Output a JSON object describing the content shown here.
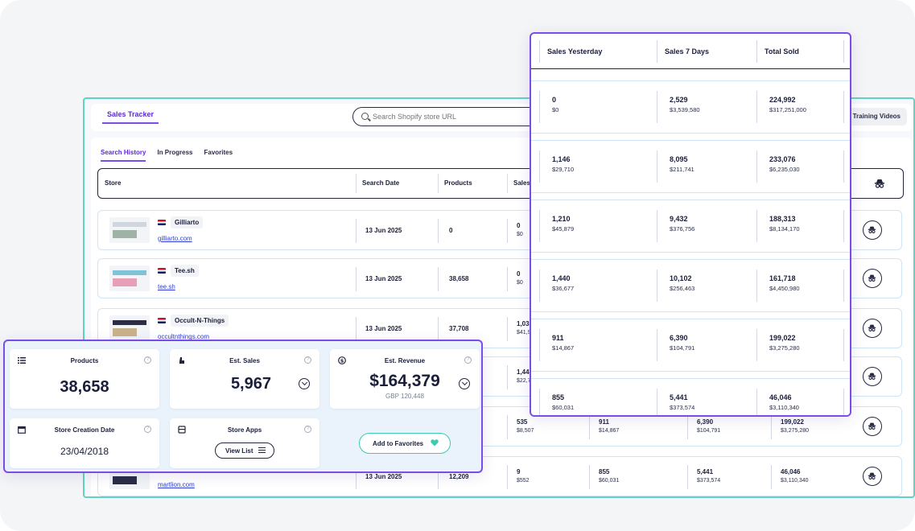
{
  "header": {
    "tab_label": "Sales Tracker",
    "search_placeholder": "Search Shopify store URL",
    "training_label": "Training Videos"
  },
  "subtabs": [
    "Search History",
    "In Progress",
    "Favorites"
  ],
  "table": {
    "columns": [
      "Store",
      "Search Date",
      "Products",
      "Sales"
    ],
    "rows": [
      {
        "name": "Gilliarto",
        "url": "gilliarto.com",
        "date": "13 Jun 2025",
        "products": "0",
        "sales": "0",
        "sales_sub": "$0",
        "flag": "US"
      },
      {
        "name": "Tee.sh",
        "url": "tee.sh",
        "date": "13 Jun 2025",
        "products": "38,658",
        "sales": "0",
        "sales_sub": "$0",
        "flag": "UK"
      },
      {
        "name": "Occult-N-Things",
        "url": "occultnthings.com",
        "date": "13 Jun 2025",
        "products": "37,708",
        "sales": "1,033",
        "sales_sub": "$41,90",
        "flag": "US"
      },
      {
        "name": "",
        "url": "",
        "date": "",
        "products": "",
        "sales": "1,448",
        "sales_sub": "$22,7",
        "flag": ""
      },
      {
        "name": "",
        "url": "",
        "date": "",
        "products": "",
        "sales": "535",
        "sales_sub": "$8,507",
        "flag": ""
      },
      {
        "name": "",
        "url": "martlion.com",
        "date": "13 Jun 2025",
        "products": "12,209",
        "sales": "9",
        "sales_sub": "$552",
        "flag": ""
      }
    ],
    "visible_tail": [
      {
        "yesterday": "911",
        "yesterday_sub": "$14,867",
        "seven": "6,390",
        "seven_sub": "$104,791",
        "total": "199,022",
        "total_sub": "$3,275,280"
      },
      {
        "yesterday": "855",
        "yesterday_sub": "$60,031",
        "seven": "5,441",
        "seven_sub": "$373,574",
        "total": "46,046",
        "total_sub": "$3,110,340"
      }
    ]
  },
  "sales_popup": {
    "columns": [
      "Sales Yesterday",
      "Sales 7 Days",
      "Total Sold"
    ],
    "rows": [
      {
        "yesterday": "0",
        "yesterday_sub": "$0",
        "seven": "2,529",
        "seven_sub": "$3,539,580",
        "total": "224,992",
        "total_sub": "$317,251,000"
      },
      {
        "yesterday": "1,146",
        "yesterday_sub": "$29,710",
        "seven": "8,095",
        "seven_sub": "$211,741",
        "total": "233,076",
        "total_sub": "$6,235,030"
      },
      {
        "yesterday": "1,210",
        "yesterday_sub": "$45,879",
        "seven": "9,432",
        "seven_sub": "$376,756",
        "total": "188,313",
        "total_sub": "$8,134,170"
      },
      {
        "yesterday": "1,440",
        "yesterday_sub": "$36,677",
        "seven": "10,102",
        "seven_sub": "$256,463",
        "total": "161,718",
        "total_sub": "$4,450,980"
      },
      {
        "yesterday": "911",
        "yesterday_sub": "$14,867",
        "seven": "6,390",
        "seven_sub": "$104,791",
        "total": "199,022",
        "total_sub": "$3,275,280"
      },
      {
        "yesterday": "855",
        "yesterday_sub": "$60,031",
        "seven": "5,441",
        "seven_sub": "$373,574",
        "total": "46,046",
        "total_sub": "$3,110,340"
      }
    ]
  },
  "stats": {
    "products_label": "Products",
    "products_value": "38,658",
    "sales_label": "Est. Sales",
    "sales_value": "5,967",
    "revenue_label": "Est. Revenue",
    "revenue_value": "$164,379",
    "revenue_sub": "GBP 120,448",
    "creation_label": "Store Creation Date",
    "creation_value": "23/04/2018",
    "apps_label": "Store Apps",
    "view_list": "View List",
    "favorites_button": "Add to Favorites",
    "help": "?"
  },
  "colors": {
    "accent": "#7b4ce8",
    "teal": "#3ec9b1",
    "link": "#2f3fd6"
  }
}
